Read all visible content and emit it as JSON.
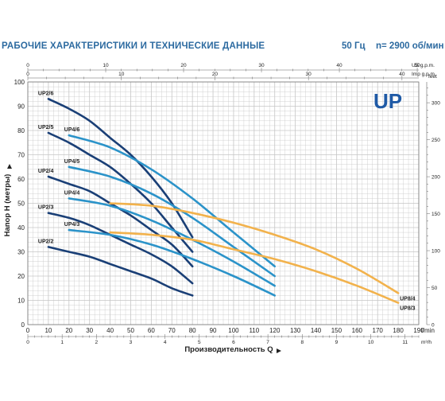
{
  "header": {
    "title": "РАБОЧИЕ ХАРАКТЕРИСТИКИ И ТЕХНИЧЕСКИЕ ДАННЫЕ",
    "frequency": "50 Гц",
    "speed": "n= 2900 об/мин"
  },
  "logo_text": "UP",
  "colors": {
    "dark_series": "#1a3f76",
    "light_series": "#2b93c9",
    "orange_series": "#f2b24c",
    "grid": "#c6c6c6",
    "logo": "#1f5aa6",
    "axis_text": "#2a2a2a"
  },
  "chart_data": {
    "type": "line",
    "xlabel": "Производительность Q",
    "ylabel": "Напор H (метры)",
    "xlim": [
      0,
      190
    ],
    "ylim": [
      0,
      100
    ],
    "x_unit": "l/min",
    "x_ticks": [
      "0",
      "10",
      "20",
      "30",
      "40",
      "50",
      "60",
      "70",
      "80",
      "90",
      "100",
      "110",
      "120",
      "130",
      "140",
      "150",
      "160",
      "170",
      "180",
      "190"
    ],
    "y_ticks": [
      "0",
      "10",
      "20",
      "30",
      "40",
      "50",
      "60",
      "70",
      "80",
      "90",
      "100"
    ],
    "secondary_axes": {
      "top_us": {
        "unit": "US g.p.m.",
        "ticks": [
          "0",
          "10",
          "20",
          "30",
          "40",
          "50"
        ],
        "per_unit_l_min": 3.785
      },
      "top_imp": {
        "unit": "Imp g.p.m.",
        "ticks": [
          "0",
          "10",
          "20",
          "30",
          "40"
        ],
        "per_unit_l_min": 4.546
      },
      "bottom_m3h": {
        "unit": "m³/h",
        "ticks": [
          "0",
          "1",
          "2",
          "3",
          "4",
          "5",
          "6",
          "7",
          "8",
          "9",
          "10",
          "11"
        ],
        "per_unit_l_min": 16.667
      },
      "right_feet": {
        "unit": "feet",
        "ticks": [
          "0",
          "50",
          "100",
          "150",
          "200",
          "250",
          "300"
        ],
        "per_unit_m": 0.3048
      }
    },
    "series": [
      {
        "name": "UP2/6",
        "style": "dark",
        "x": [
          10,
          20,
          30,
          40,
          50,
          60,
          70,
          80
        ],
        "y": [
          93,
          89,
          84,
          77,
          70,
          61,
          50,
          36
        ]
      },
      {
        "name": "UP2/5",
        "style": "dark",
        "x": [
          10,
          20,
          30,
          40,
          50,
          60,
          70,
          80
        ],
        "y": [
          79,
          75,
          70,
          65,
          58,
          50,
          40,
          30
        ]
      },
      {
        "name": "UP2/4",
        "style": "dark",
        "x": [
          10,
          20,
          30,
          40,
          50,
          60,
          70,
          80
        ],
        "y": [
          61,
          58,
          55,
          50,
          45,
          39,
          33,
          24
        ]
      },
      {
        "name": "UP2/3",
        "style": "dark",
        "x": [
          10,
          20,
          30,
          40,
          50,
          60,
          70,
          80
        ],
        "y": [
          46,
          44,
          41,
          37,
          33,
          29,
          24,
          17
        ]
      },
      {
        "name": "UP2/2",
        "style": "dark",
        "x": [
          10,
          20,
          30,
          40,
          50,
          60,
          70,
          80
        ],
        "y": [
          32,
          30,
          28,
          25,
          22,
          19,
          15,
          12
        ]
      },
      {
        "name": "UP4/6",
        "style": "light",
        "x": [
          20,
          40,
          60,
          80,
          100,
          120
        ],
        "y": [
          78,
          73,
          64,
          52,
          38,
          24
        ]
      },
      {
        "name": "UP4/5",
        "style": "light",
        "x": [
          20,
          40,
          60,
          80,
          100,
          120
        ],
        "y": [
          65,
          61,
          54,
          44,
          32,
          20
        ]
      },
      {
        "name": "UP4/4",
        "style": "light",
        "x": [
          20,
          40,
          60,
          80,
          100,
          120
        ],
        "y": [
          52,
          49,
          43,
          35,
          26,
          16
        ]
      },
      {
        "name": "UP4/3",
        "style": "light",
        "x": [
          20,
          40,
          60,
          80,
          100,
          120
        ],
        "y": [
          39,
          37,
          33,
          27,
          20,
          12
        ]
      },
      {
        "name": "UP8/4",
        "style": "orange",
        "x": [
          40,
          60,
          80,
          100,
          120,
          140,
          160,
          180
        ],
        "y": [
          50,
          49,
          46,
          42,
          37,
          31,
          23,
          13
        ]
      },
      {
        "name": "UP8/3",
        "style": "orange",
        "x": [
          40,
          60,
          80,
          100,
          120,
          140,
          160,
          180
        ],
        "y": [
          38,
          37,
          35,
          31,
          27,
          22,
          16,
          9
        ]
      }
    ],
    "grid": true
  }
}
